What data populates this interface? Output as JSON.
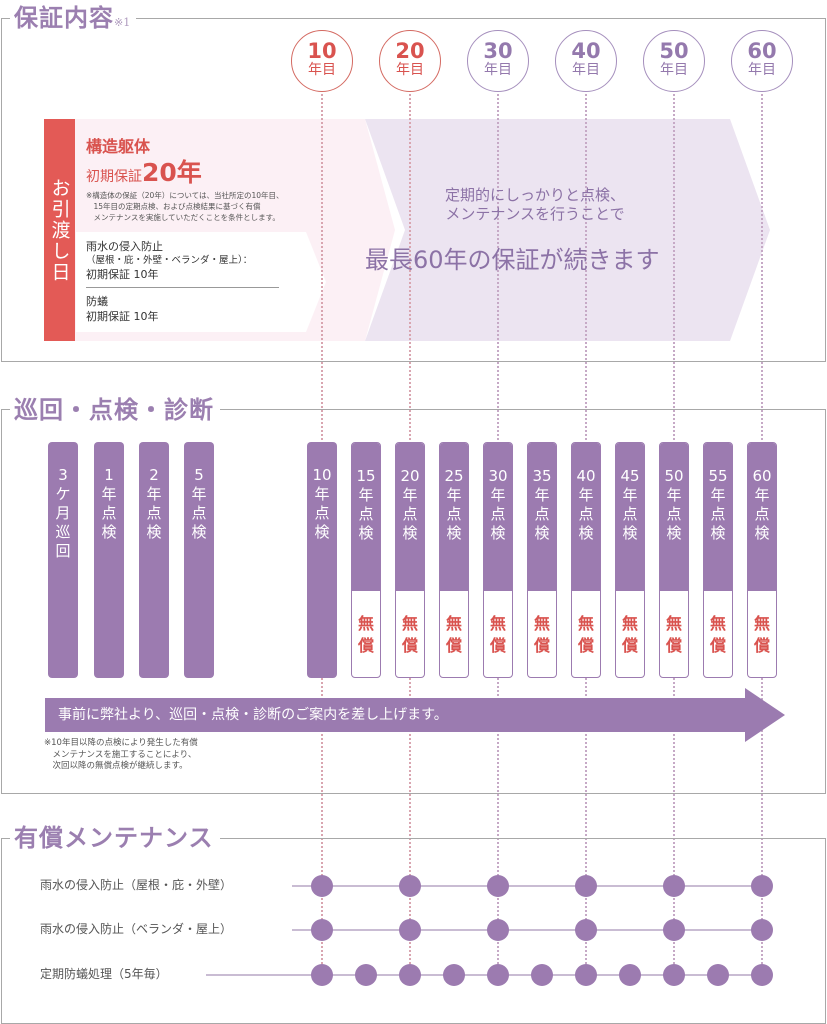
{
  "guarantee": {
    "title": "保証内容",
    "title_note": "※1",
    "year_circles": [
      {
        "num": "10",
        "unit": "年目",
        "color": "red"
      },
      {
        "num": "20",
        "unit": "年目",
        "color": "red"
      },
      {
        "num": "30",
        "unit": "年目",
        "color": "purple"
      },
      {
        "num": "40",
        "unit": "年目",
        "color": "purple"
      },
      {
        "num": "50",
        "unit": "年目",
        "color": "purple"
      },
      {
        "num": "60",
        "unit": "年目",
        "color": "purple"
      }
    ],
    "handover_label": "お引渡し日",
    "structure": {
      "title": "構造躯体",
      "initial_label": "初期保証",
      "initial_years": "20年",
      "note_lines": [
        "※構造体の保証（20年）については、当社所定の10年目、",
        "　15年目の定期点検、および点検結果に基づく有償",
        "　メンテナンスを実施していただくことを条件とします。"
      ]
    },
    "rain": {
      "title": "雨水の侵入防止",
      "sub": "（屋根・庇・外壁・ベランダ・屋上）：",
      "guarantee": "初期保証 10年"
    },
    "termite": {
      "title": "防蟻",
      "guarantee": "初期保証 10年"
    },
    "message_line1": "定期的にしっかりと点検、",
    "message_line2": "メンテナンスを行うことで",
    "message_big": "最長60年の保証が続きます"
  },
  "inspection": {
    "title": "巡回・点検・診断",
    "early_bars": [
      {
        "label": [
          "3",
          "ケ",
          "月",
          "巡",
          "回"
        ]
      },
      {
        "label": [
          "1",
          "年",
          "点",
          "検"
        ]
      },
      {
        "label": [
          "2",
          "年",
          "点",
          "検"
        ]
      },
      {
        "label": [
          "5",
          "年",
          "点",
          "検"
        ]
      }
    ],
    "year_bars": [
      {
        "label": [
          "10",
          "年",
          "点",
          "検"
        ],
        "free": false
      },
      {
        "label": [
          "15",
          "年",
          "点",
          "検"
        ],
        "free": true
      },
      {
        "label": [
          "20",
          "年",
          "点",
          "検"
        ],
        "free": true
      },
      {
        "label": [
          "25",
          "年",
          "点",
          "検"
        ],
        "free": true
      },
      {
        "label": [
          "30",
          "年",
          "点",
          "検"
        ],
        "free": true
      },
      {
        "label": [
          "35",
          "年",
          "点",
          "検"
        ],
        "free": true
      },
      {
        "label": [
          "40",
          "年",
          "点",
          "検"
        ],
        "free": true
      },
      {
        "label": [
          "45",
          "年",
          "点",
          "検"
        ],
        "free": true
      },
      {
        "label": [
          "50",
          "年",
          "点",
          "検"
        ],
        "free": true
      },
      {
        "label": [
          "55",
          "年",
          "点",
          "検"
        ],
        "free": true
      },
      {
        "label": [
          "60",
          "年",
          "点",
          "検"
        ],
        "free": true
      }
    ],
    "free_label": [
      "無",
      "償"
    ],
    "arrow_text": "事前に弊社より、巡回・点検・診断のご案内を差し上げます。",
    "note_lines": [
      "※10年目以降の点検により発生した有償",
      "　メンテナンスを施工することにより、",
      "　次回以降の無償点検が継続します。"
    ]
  },
  "maintenance": {
    "title": "有償メンテナンス",
    "rows": [
      {
        "label": "雨水の侵入防止（屋根・庇・外壁）",
        "years": [
          10,
          20,
          30,
          40,
          50,
          60
        ]
      },
      {
        "label": "雨水の侵入防止（ベランダ・屋上）",
        "years": [
          10,
          20,
          30,
          40,
          50,
          60
        ]
      },
      {
        "label": "定期防蟻処理（5年毎）",
        "years": [
          10,
          15,
          20,
          25,
          30,
          35,
          40,
          45,
          50,
          55,
          60
        ]
      }
    ]
  },
  "colors": {
    "accent_purple": "#9c7bb0",
    "accent_red": "#e35a56",
    "pink_band": "#fcf0f5",
    "lavender_band": "#ece4f1"
  }
}
